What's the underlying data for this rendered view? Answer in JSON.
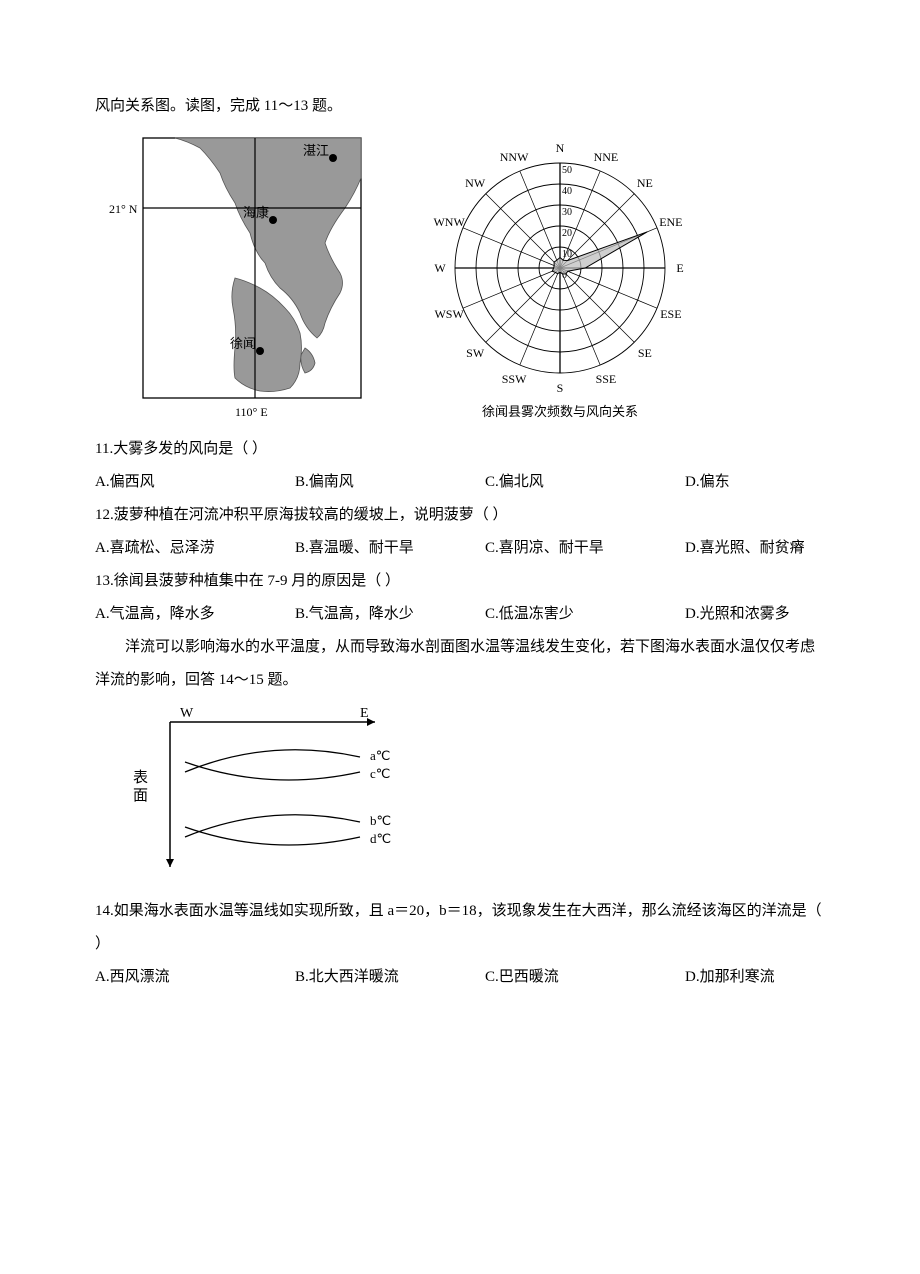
{
  "intro1": "风向关系图。读图，完成 11～13 题。",
  "map": {
    "lat_label": "21° N",
    "lon_label": "110° E",
    "city1": "湛江",
    "city2": "海康",
    "city3": "徐闻"
  },
  "rose": {
    "ticks": [
      "50",
      "40",
      "30",
      "20",
      "10",
      "0"
    ],
    "dirs": [
      "N",
      "NNE",
      "NE",
      "ENE",
      "E",
      "ESE",
      "SE",
      "SSE",
      "S",
      "SSW",
      "SW",
      "WSW",
      "W",
      "WNW",
      "NW",
      "NNW"
    ],
    "caption": "徐闻县雾次频数与风向关系",
    "values": [
      5,
      4,
      5,
      45,
      12,
      4,
      4,
      3,
      2,
      3,
      3,
      4,
      3,
      3,
      4,
      4
    ]
  },
  "q11": {
    "stem": "11.大雾多发的风向是（    ）",
    "A": "A.偏西风",
    "B": "B.偏南风",
    "C": "C.偏北风",
    "D": "D.偏东"
  },
  "q12": {
    "stem": "12.菠萝种植在河流冲积平原海拔较高的缓坡上，说明菠萝（    ）",
    "A": "A.喜疏松、忌泽涝",
    "B": "B.喜温暖、耐干旱",
    "C": "C.喜阴凉、耐干旱",
    "D": "D.喜光照、耐贫瘠"
  },
  "q13": {
    "stem": "13.徐闻县菠萝种植集中在 7-9 月的原因是（    ）",
    "A": "A.气温高，降水多",
    "B": "B.气温高，降水少",
    "C": "C.低温冻害少",
    "D": "D.光照和浓雾多"
  },
  "intro2": "洋流可以影响海水的水平温度，从而导致海水剖面图水温等温线发生变化，若下图海水表面水温仅仅考虑洋流的影响，回答 14～15 题。",
  "profile": {
    "W": "W",
    "E": "E",
    "ylabel": "表面",
    "a": "a℃",
    "c": "c℃",
    "b": "b℃",
    "d": "d℃"
  },
  "q14": {
    "stem": "14.如果海水表面水温等温线如实现所致，且 a＝20，b＝18，该现象发生在大西洋，那么流经该海区的洋流是（    ）",
    "A": "A.西风漂流",
    "B": "B.北大西洋暖流",
    "C": "C.巴西暖流",
    "D": "D.加那利寒流"
  }
}
